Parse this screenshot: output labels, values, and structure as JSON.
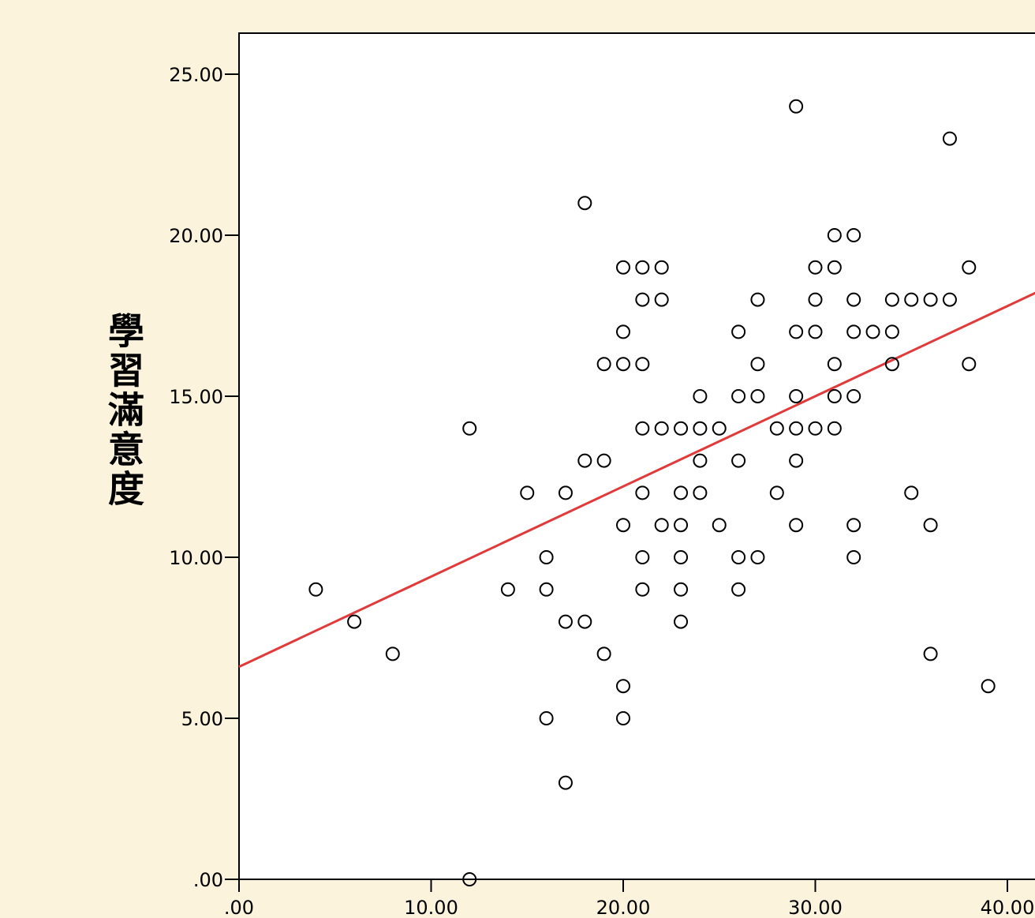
{
  "chart_data": {
    "type": "scatter",
    "title": "",
    "xlabel": "",
    "ylabel": "學習滿意度",
    "xlim": [
      0,
      40
    ],
    "ylim": [
      0,
      25
    ],
    "x_ticks": [
      ".00",
      "10.00",
      "20.00",
      "30.00",
      "40.00"
    ],
    "y_ticks": [
      ".00",
      "5.00",
      "10.00",
      "15.00",
      "20.00",
      "25.00"
    ],
    "grid": false,
    "point_color": "#000000",
    "line_color": "#e03a3a",
    "fit_line": {
      "intercept": 6.6,
      "slope": 0.28
    },
    "points": [
      [
        4,
        9
      ],
      [
        6,
        8
      ],
      [
        8,
        7
      ],
      [
        12,
        14
      ],
      [
        12,
        0
      ],
      [
        14,
        9
      ],
      [
        15,
        12
      ],
      [
        16,
        10
      ],
      [
        16,
        9
      ],
      [
        16,
        5
      ],
      [
        17,
        12
      ],
      [
        17,
        8
      ],
      [
        17,
        3
      ],
      [
        18,
        21
      ],
      [
        18,
        13
      ],
      [
        18,
        8
      ],
      [
        19,
        16
      ],
      [
        19,
        13
      ],
      [
        19,
        7
      ],
      [
        20,
        19
      ],
      [
        20,
        17
      ],
      [
        20,
        16
      ],
      [
        20,
        11
      ],
      [
        20,
        6
      ],
      [
        20,
        5
      ],
      [
        21,
        19
      ],
      [
        21,
        18
      ],
      [
        21,
        16
      ],
      [
        21,
        14
      ],
      [
        21,
        12
      ],
      [
        21,
        10
      ],
      [
        21,
        9
      ],
      [
        22,
        19
      ],
      [
        22,
        18
      ],
      [
        22,
        14
      ],
      [
        22,
        11
      ],
      [
        23,
        14
      ],
      [
        23,
        12
      ],
      [
        23,
        11
      ],
      [
        23,
        10
      ],
      [
        23,
        9
      ],
      [
        23,
        8
      ],
      [
        24,
        15
      ],
      [
        24,
        14
      ],
      [
        24,
        13
      ],
      [
        24,
        12
      ],
      [
        25,
        14
      ],
      [
        25,
        11
      ],
      [
        26,
        17
      ],
      [
        26,
        15
      ],
      [
        26,
        13
      ],
      [
        26,
        10
      ],
      [
        26,
        9
      ],
      [
        27,
        18
      ],
      [
        27,
        16
      ],
      [
        27,
        15
      ],
      [
        27,
        10
      ],
      [
        28,
        14
      ],
      [
        28,
        12
      ],
      [
        29,
        24
      ],
      [
        29,
        17
      ],
      [
        29,
        15
      ],
      [
        29,
        14
      ],
      [
        29,
        13
      ],
      [
        29,
        11
      ],
      [
        30,
        19
      ],
      [
        30,
        18
      ],
      [
        30,
        17
      ],
      [
        30,
        14
      ],
      [
        31,
        20
      ],
      [
        31,
        19
      ],
      [
        31,
        16
      ],
      [
        31,
        15
      ],
      [
        31,
        14
      ],
      [
        32,
        20
      ],
      [
        32,
        18
      ],
      [
        32,
        17
      ],
      [
        32,
        15
      ],
      [
        32,
        11
      ],
      [
        32,
        10
      ],
      [
        33,
        17
      ],
      [
        34,
        18
      ],
      [
        34,
        17
      ],
      [
        34,
        16
      ],
      [
        35,
        18
      ],
      [
        35,
        12
      ],
      [
        36,
        18
      ],
      [
        36,
        11
      ],
      [
        36,
        7
      ],
      [
        37,
        23
      ],
      [
        37,
        18
      ],
      [
        38,
        19
      ],
      [
        38,
        16
      ],
      [
        39,
        6
      ]
    ]
  }
}
